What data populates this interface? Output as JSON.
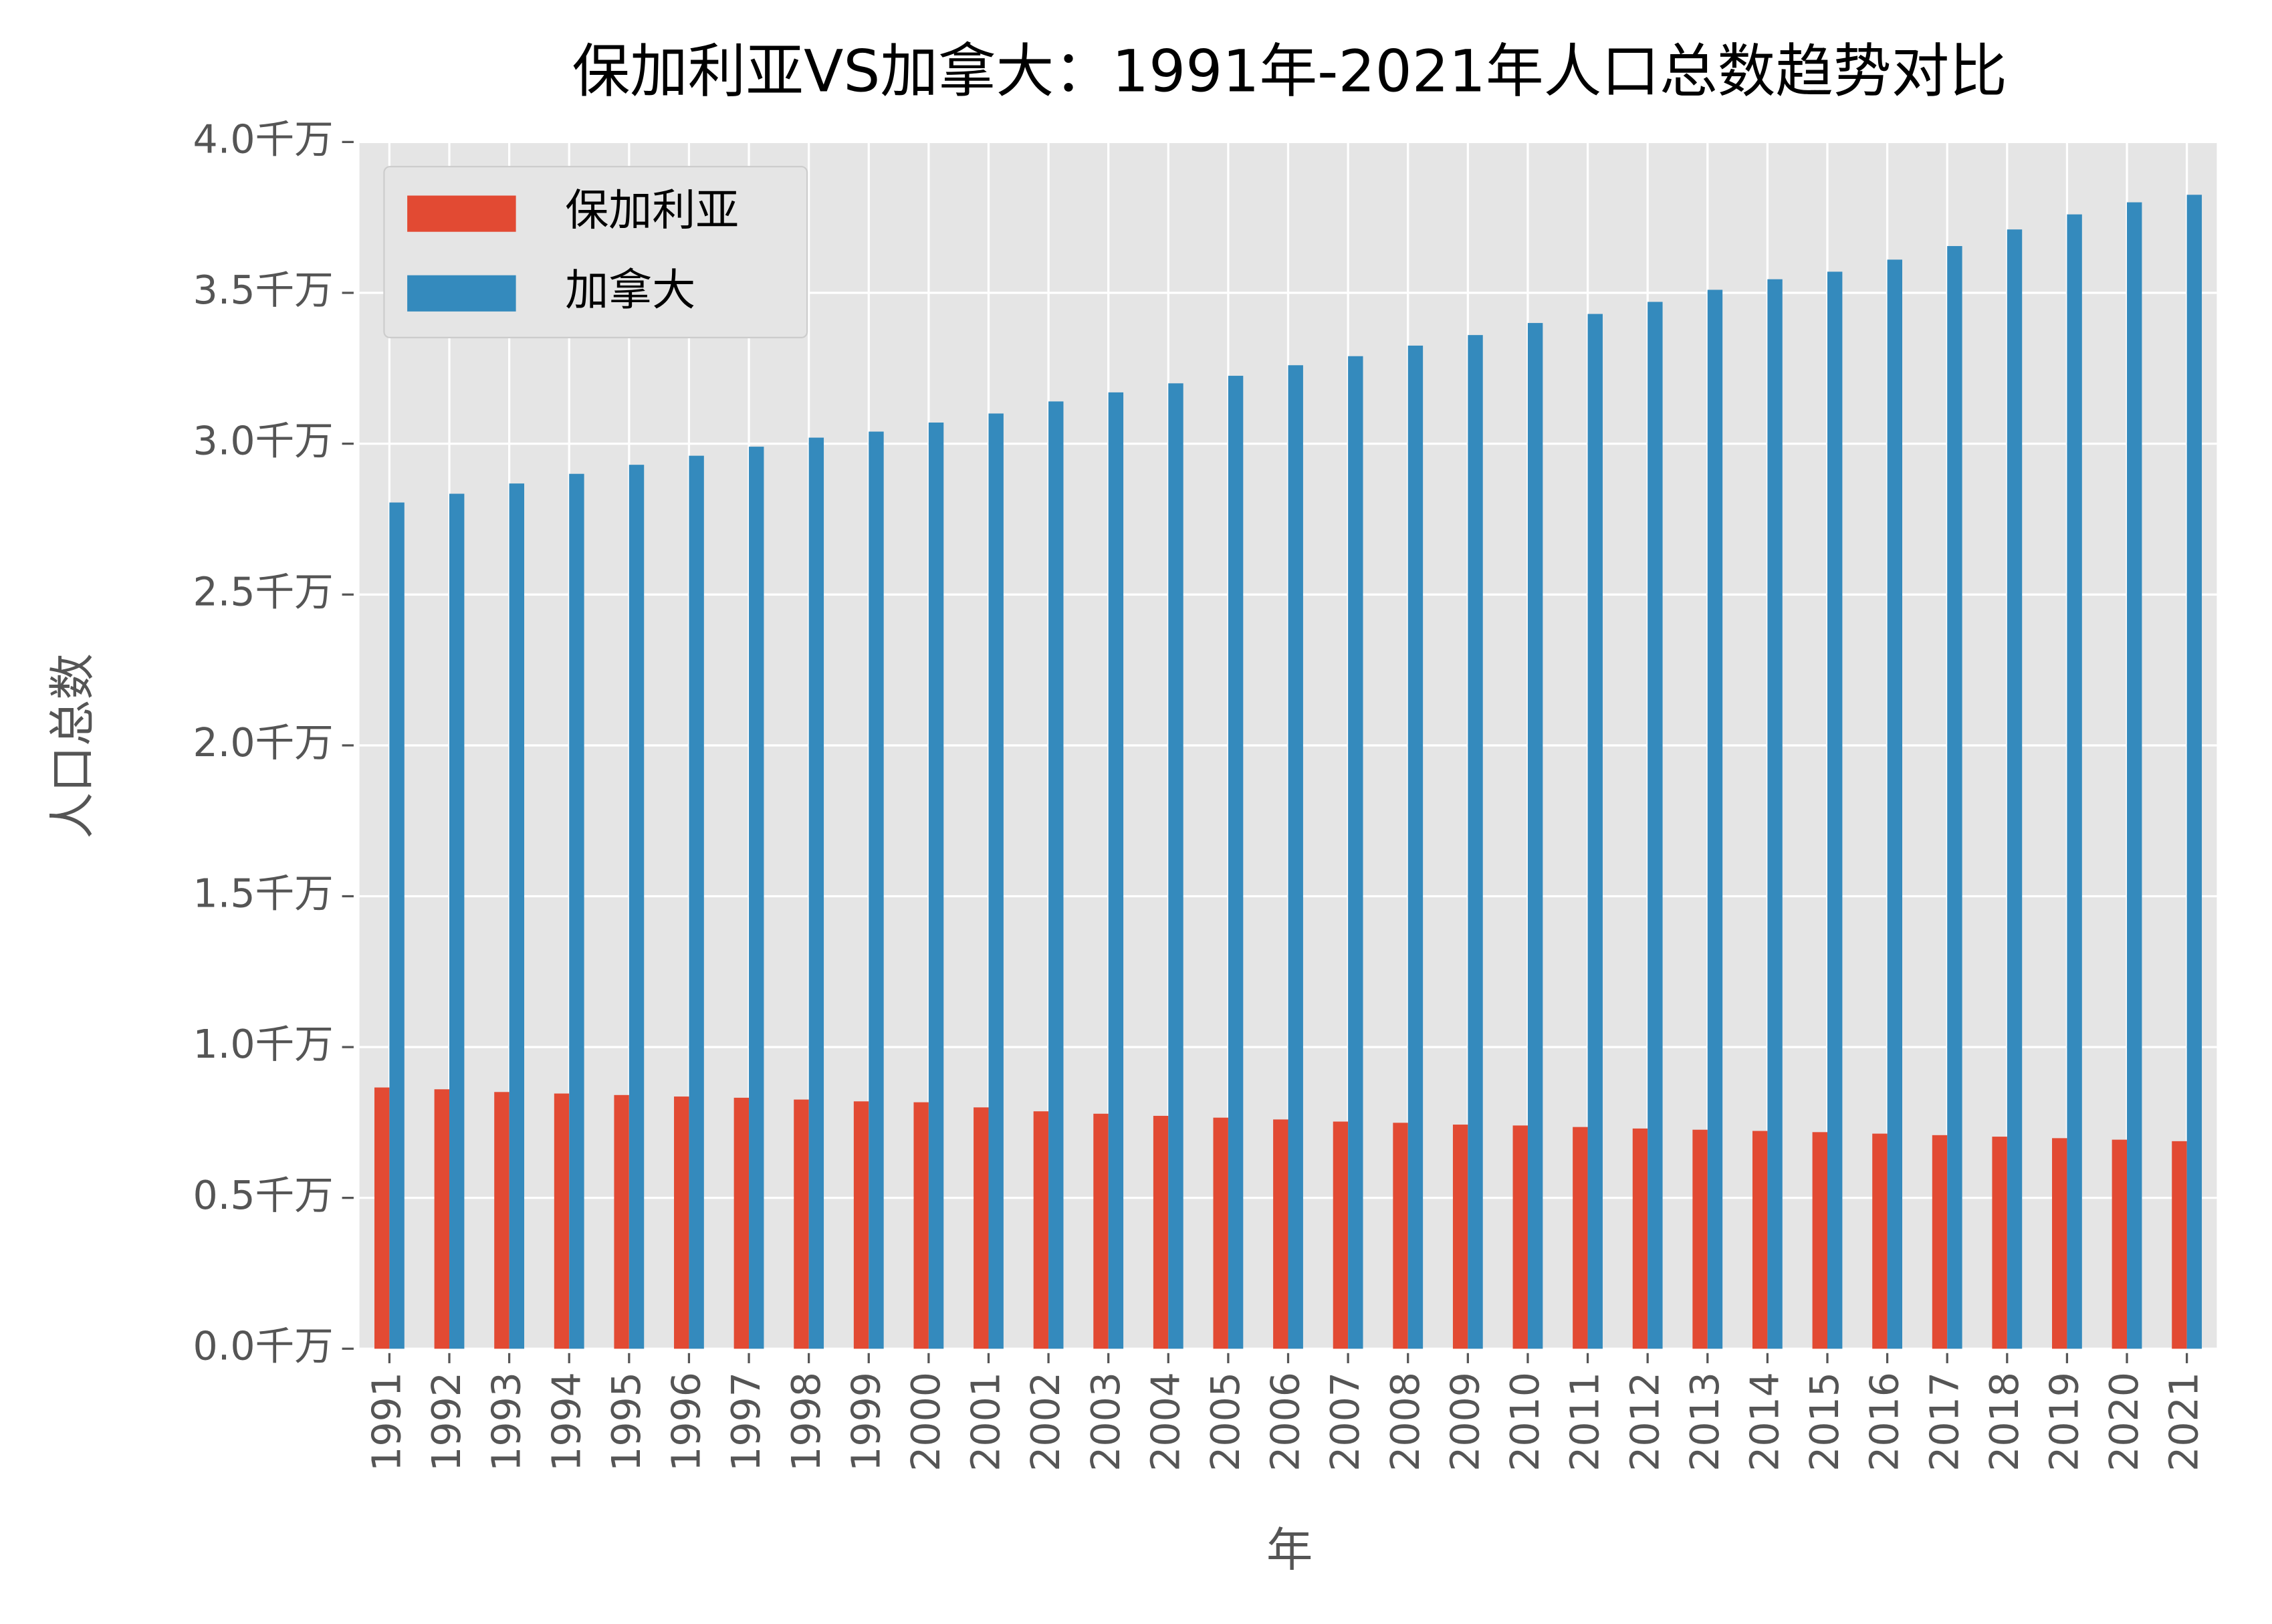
{
  "chart_data": {
    "type": "bar",
    "title": "保加利亚VS加拿大：1991年-2021年人口总数趋势对比",
    "x_label": "年",
    "y_label": "人口总数",
    "categories": [
      "1991",
      "1992",
      "1993",
      "1994",
      "1995",
      "1996",
      "1997",
      "1998",
      "1999",
      "2000",
      "2001",
      "2002",
      "2003",
      "2004",
      "2005",
      "2006",
      "2007",
      "2008",
      "2009",
      "2010",
      "2011",
      "2012",
      "2013",
      "2014",
      "2015",
      "2016",
      "2017",
      "2018",
      "2019",
      "2020",
      "2021"
    ],
    "series": [
      {
        "name": "保加利亚",
        "color": "#e24a33",
        "values": [
          0.866,
          0.86,
          0.851,
          0.846,
          0.841,
          0.836,
          0.832,
          0.826,
          0.82,
          0.817,
          0.8,
          0.787,
          0.779,
          0.772,
          0.766,
          0.76,
          0.753,
          0.749,
          0.743,
          0.74,
          0.735,
          0.73,
          0.726,
          0.722,
          0.718,
          0.713,
          0.708,
          0.703,
          0.698,
          0.693,
          0.688
        ]
      },
      {
        "name": "加拿大",
        "color": "#348abd",
        "values": [
          2.805,
          2.834,
          2.868,
          2.9,
          2.93,
          2.96,
          2.99,
          3.02,
          3.04,
          3.07,
          3.1,
          3.14,
          3.17,
          3.2,
          3.225,
          3.26,
          3.29,
          3.325,
          3.36,
          3.4,
          3.43,
          3.47,
          3.51,
          3.545,
          3.57,
          3.61,
          3.655,
          3.71,
          3.76,
          3.8,
          3.825
        ]
      }
    ],
    "ylim": [
      0,
      4.0
    ],
    "yticks": [
      {
        "value": 0,
        "label": "0.0千万"
      },
      {
        "value": 0.5,
        "label": "0.5千万"
      },
      {
        "value": 1,
        "label": "1.0千万"
      },
      {
        "value": 1.5,
        "label": "1.5千万"
      },
      {
        "value": 2,
        "label": "2.0千万"
      },
      {
        "value": 2.5,
        "label": "2.5千万"
      },
      {
        "value": 3,
        "label": "3.0千万"
      },
      {
        "value": 3.5,
        "label": "3.5千万"
      },
      {
        "value": 4,
        "label": "4.0千万"
      }
    ],
    "grid": true,
    "legend": "upper left"
  }
}
